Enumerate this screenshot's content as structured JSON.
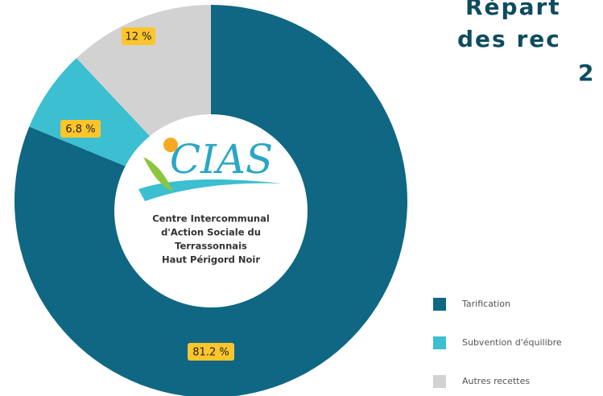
{
  "chart_data": {
    "type": "donut",
    "title_lines": [
      "Répart",
      "des rec",
      "2"
    ],
    "categories": [
      "Tarification",
      "Subvention d'équilibre",
      "Autres recettes"
    ],
    "values": [
      81.2,
      6.8,
      12
    ],
    "value_labels": [
      "81.2 %",
      "6.8 %",
      "12 %"
    ],
    "colors": [
      "#0f6783",
      "#3cbfd0",
      "#d2d2d2"
    ],
    "legend": "bottom-right",
    "logo": {
      "mark": "CIAS",
      "lines": [
        "Centre Intercommunal",
        "d'Action Sociale du",
        "Terrassonnais",
        "Haut Périgord Noir"
      ]
    }
  }
}
